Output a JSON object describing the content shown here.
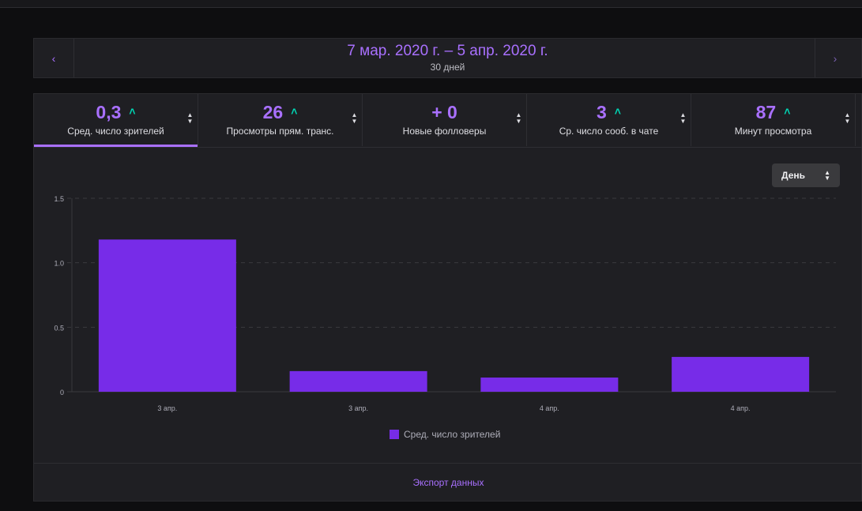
{
  "nav": {
    "prev_icon": "chevron-left-icon",
    "next_icon": "chevron-right-icon",
    "range": "7 мар. 2020 г. – 5 апр. 2020 г.",
    "days": "30 дней"
  },
  "tabs": [
    {
      "value": "0,3",
      "trend": "up-icon",
      "label": "Сред. число зрителей",
      "active": true
    },
    {
      "value": "26",
      "trend": "up-icon",
      "label": "Просмотры прям. транс.",
      "active": false
    },
    {
      "value": "+ 0",
      "trend": "",
      "label": "Новые фолловеры",
      "active": false
    },
    {
      "value": "3",
      "trend": "up-icon",
      "label": "Ср. число сооб. в чате",
      "active": false
    },
    {
      "value": "87",
      "trend": "up-icon",
      "label": "Минут просмотра",
      "active": false
    }
  ],
  "granularity": {
    "selected": "День"
  },
  "colors": {
    "accent": "#a970ff",
    "bar": "#772ce8",
    "trend_up": "#00d6b4"
  },
  "chart_data": {
    "type": "bar",
    "categories": [
      "3 апр.",
      "3 апр.",
      "4 апр.",
      "4 апр."
    ],
    "values": [
      1.18,
      0.16,
      0.11,
      0.27
    ],
    "ylim": [
      0,
      1.5
    ],
    "yticks": [
      "0",
      "0.5",
      "1.0",
      "1.5"
    ],
    "ytick_values": [
      0,
      0.5,
      1.0,
      1.5
    ],
    "legend": "Сред. число зрителей",
    "grid": true
  },
  "footer": {
    "export_label": "Экспорт данных"
  }
}
